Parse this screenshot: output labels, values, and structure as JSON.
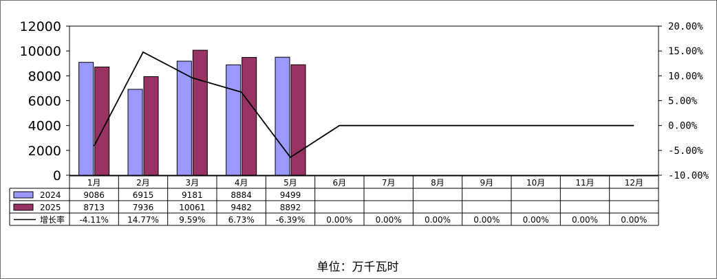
{
  "unit_label": "单位：万千瓦时",
  "colors": {
    "s2024": "#9999ff",
    "s2025": "#993366",
    "line": "#000000",
    "grid": "#000000"
  },
  "chart_data": {
    "type": "bar",
    "categories": [
      "1月",
      "2月",
      "3月",
      "4月",
      "5月",
      "6月",
      "7月",
      "8月",
      "9月",
      "10月",
      "11月",
      "12月"
    ],
    "series": [
      {
        "name": "2024",
        "type": "bar",
        "values": [
          9086,
          6915,
          9181,
          8884,
          9499,
          null,
          null,
          null,
          null,
          null,
          null,
          null
        ]
      },
      {
        "name": "2025",
        "type": "bar",
        "values": [
          8713,
          7936,
          10061,
          9482,
          8892,
          null,
          null,
          null,
          null,
          null,
          null,
          null
        ]
      },
      {
        "name": "增长率",
        "type": "line",
        "axis": "right",
        "values": [
          -4.11,
          14.77,
          9.59,
          6.73,
          -6.39,
          0.0,
          0.0,
          0.0,
          0.0,
          0.0,
          0.0,
          0.0
        ]
      }
    ],
    "table_rows": [
      {
        "label": "2024",
        "cells": [
          "9086",
          "6915",
          "9181",
          "8884",
          "9499",
          "",
          "",
          "",
          "",
          "",
          "",
          ""
        ]
      },
      {
        "label": "2025",
        "cells": [
          "8713",
          "7936",
          "10061",
          "9482",
          "8892",
          "",
          "",
          "",
          "",
          "",
          "",
          ""
        ]
      },
      {
        "label": "增长率",
        "cells": [
          "-4.11%",
          "14.77%",
          "9.59%",
          "6.73%",
          "-6.39%",
          "0.00%",
          "0.00%",
          "0.00%",
          "0.00%",
          "0.00%",
          "0.00%",
          "0.00%"
        ]
      }
    ],
    "y_left": {
      "ylim": [
        0,
        12000
      ],
      "ticks": [
        "0",
        "2000",
        "4000",
        "6000",
        "8000",
        "10000",
        "12000"
      ]
    },
    "y_right": {
      "ylim": [
        -10,
        20
      ],
      "ticks": [
        "-10.00%",
        "-5.00%",
        "0.00%",
        "5.00%",
        "10.00%",
        "15.00%",
        "20.00%"
      ]
    },
    "grid": false,
    "legend": "table-left"
  }
}
